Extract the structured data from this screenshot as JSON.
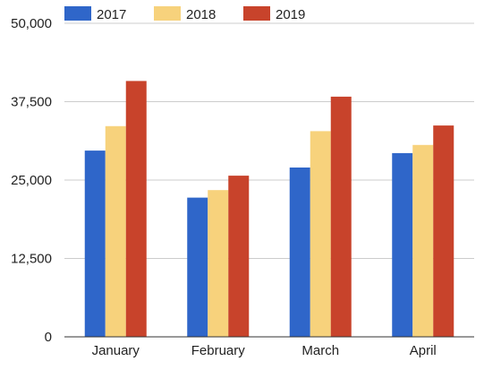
{
  "chart_data": {
    "type": "bar",
    "title": "",
    "xlabel": "",
    "ylabel": "",
    "categories": [
      "January",
      "February",
      "March",
      "April"
    ],
    "series": [
      {
        "name": "2017",
        "color": "#2f66c9",
        "values": [
          29700,
          22200,
          27000,
          29300
        ]
      },
      {
        "name": "2018",
        "color": "#f7d27c",
        "values": [
          33600,
          23400,
          32800,
          30600
        ]
      },
      {
        "name": "2019",
        "color": "#c8432b",
        "values": [
          40800,
          25700,
          38300,
          33700
        ]
      }
    ],
    "ylim": [
      0,
      50000
    ],
    "yticks": [
      "0",
      "12,500",
      "25,000",
      "37,500",
      "50,000"
    ],
    "ytick_values": [
      0,
      12500,
      25000,
      37500,
      50000
    ],
    "grid": true,
    "legend": "top-left"
  }
}
